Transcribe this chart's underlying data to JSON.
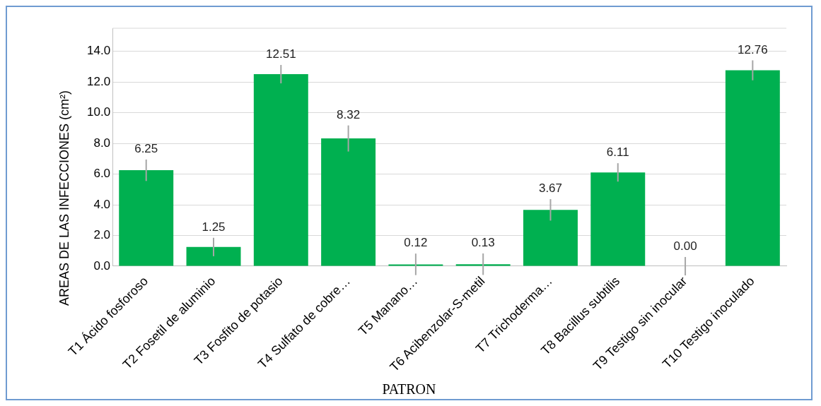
{
  "chart_data": {
    "type": "bar",
    "xlabel": "PATRON",
    "ylabel": "AREAS  DE LAS INFECCIONES  (cm²)",
    "categories": [
      "T1 Ácido fosforoso",
      "T2 Fosetil de aluminio",
      "T3 Fosfito de potasio",
      "T4 Sulfato de cobre…",
      "T5 Manano…",
      "T6 Acibenzolar-S-metil",
      "T7 Trichoderma…",
      "T8 Bacillus subtilis",
      "T9 Testigo sin inocular",
      "T10 Testigo inoculado"
    ],
    "values": [
      6.25,
      1.25,
      12.51,
      8.32,
      0.12,
      0.13,
      3.67,
      6.11,
      0,
      12.76
    ],
    "value_labels": [
      "6.25",
      "1.25",
      "12.51",
      "8.32",
      "0.12",
      "0.13",
      "3.67",
      "6.11",
      "0.00",
      "12.76"
    ],
    "errors": [
      0.7,
      0.6,
      0.6,
      0.85,
      0.7,
      0.7,
      0.7,
      0.6,
      0.6,
      0.65
    ],
    "color": "#00b050",
    "ylim": [
      0,
      15.5
    ],
    "yticks": [
      {
        "value": 0,
        "label": "0.0"
      },
      {
        "value": 2,
        "label": "2.0"
      },
      {
        "value": 4,
        "label": "4.0"
      },
      {
        "value": 6,
        "label": "6.0"
      },
      {
        "value": 8,
        "label": "8.0"
      },
      {
        "value": 10,
        "label": "10.0"
      },
      {
        "value": 12,
        "label": "12.0"
      },
      {
        "value": 14,
        "label": "14.0"
      }
    ],
    "grid": "y",
    "legend": false
  }
}
